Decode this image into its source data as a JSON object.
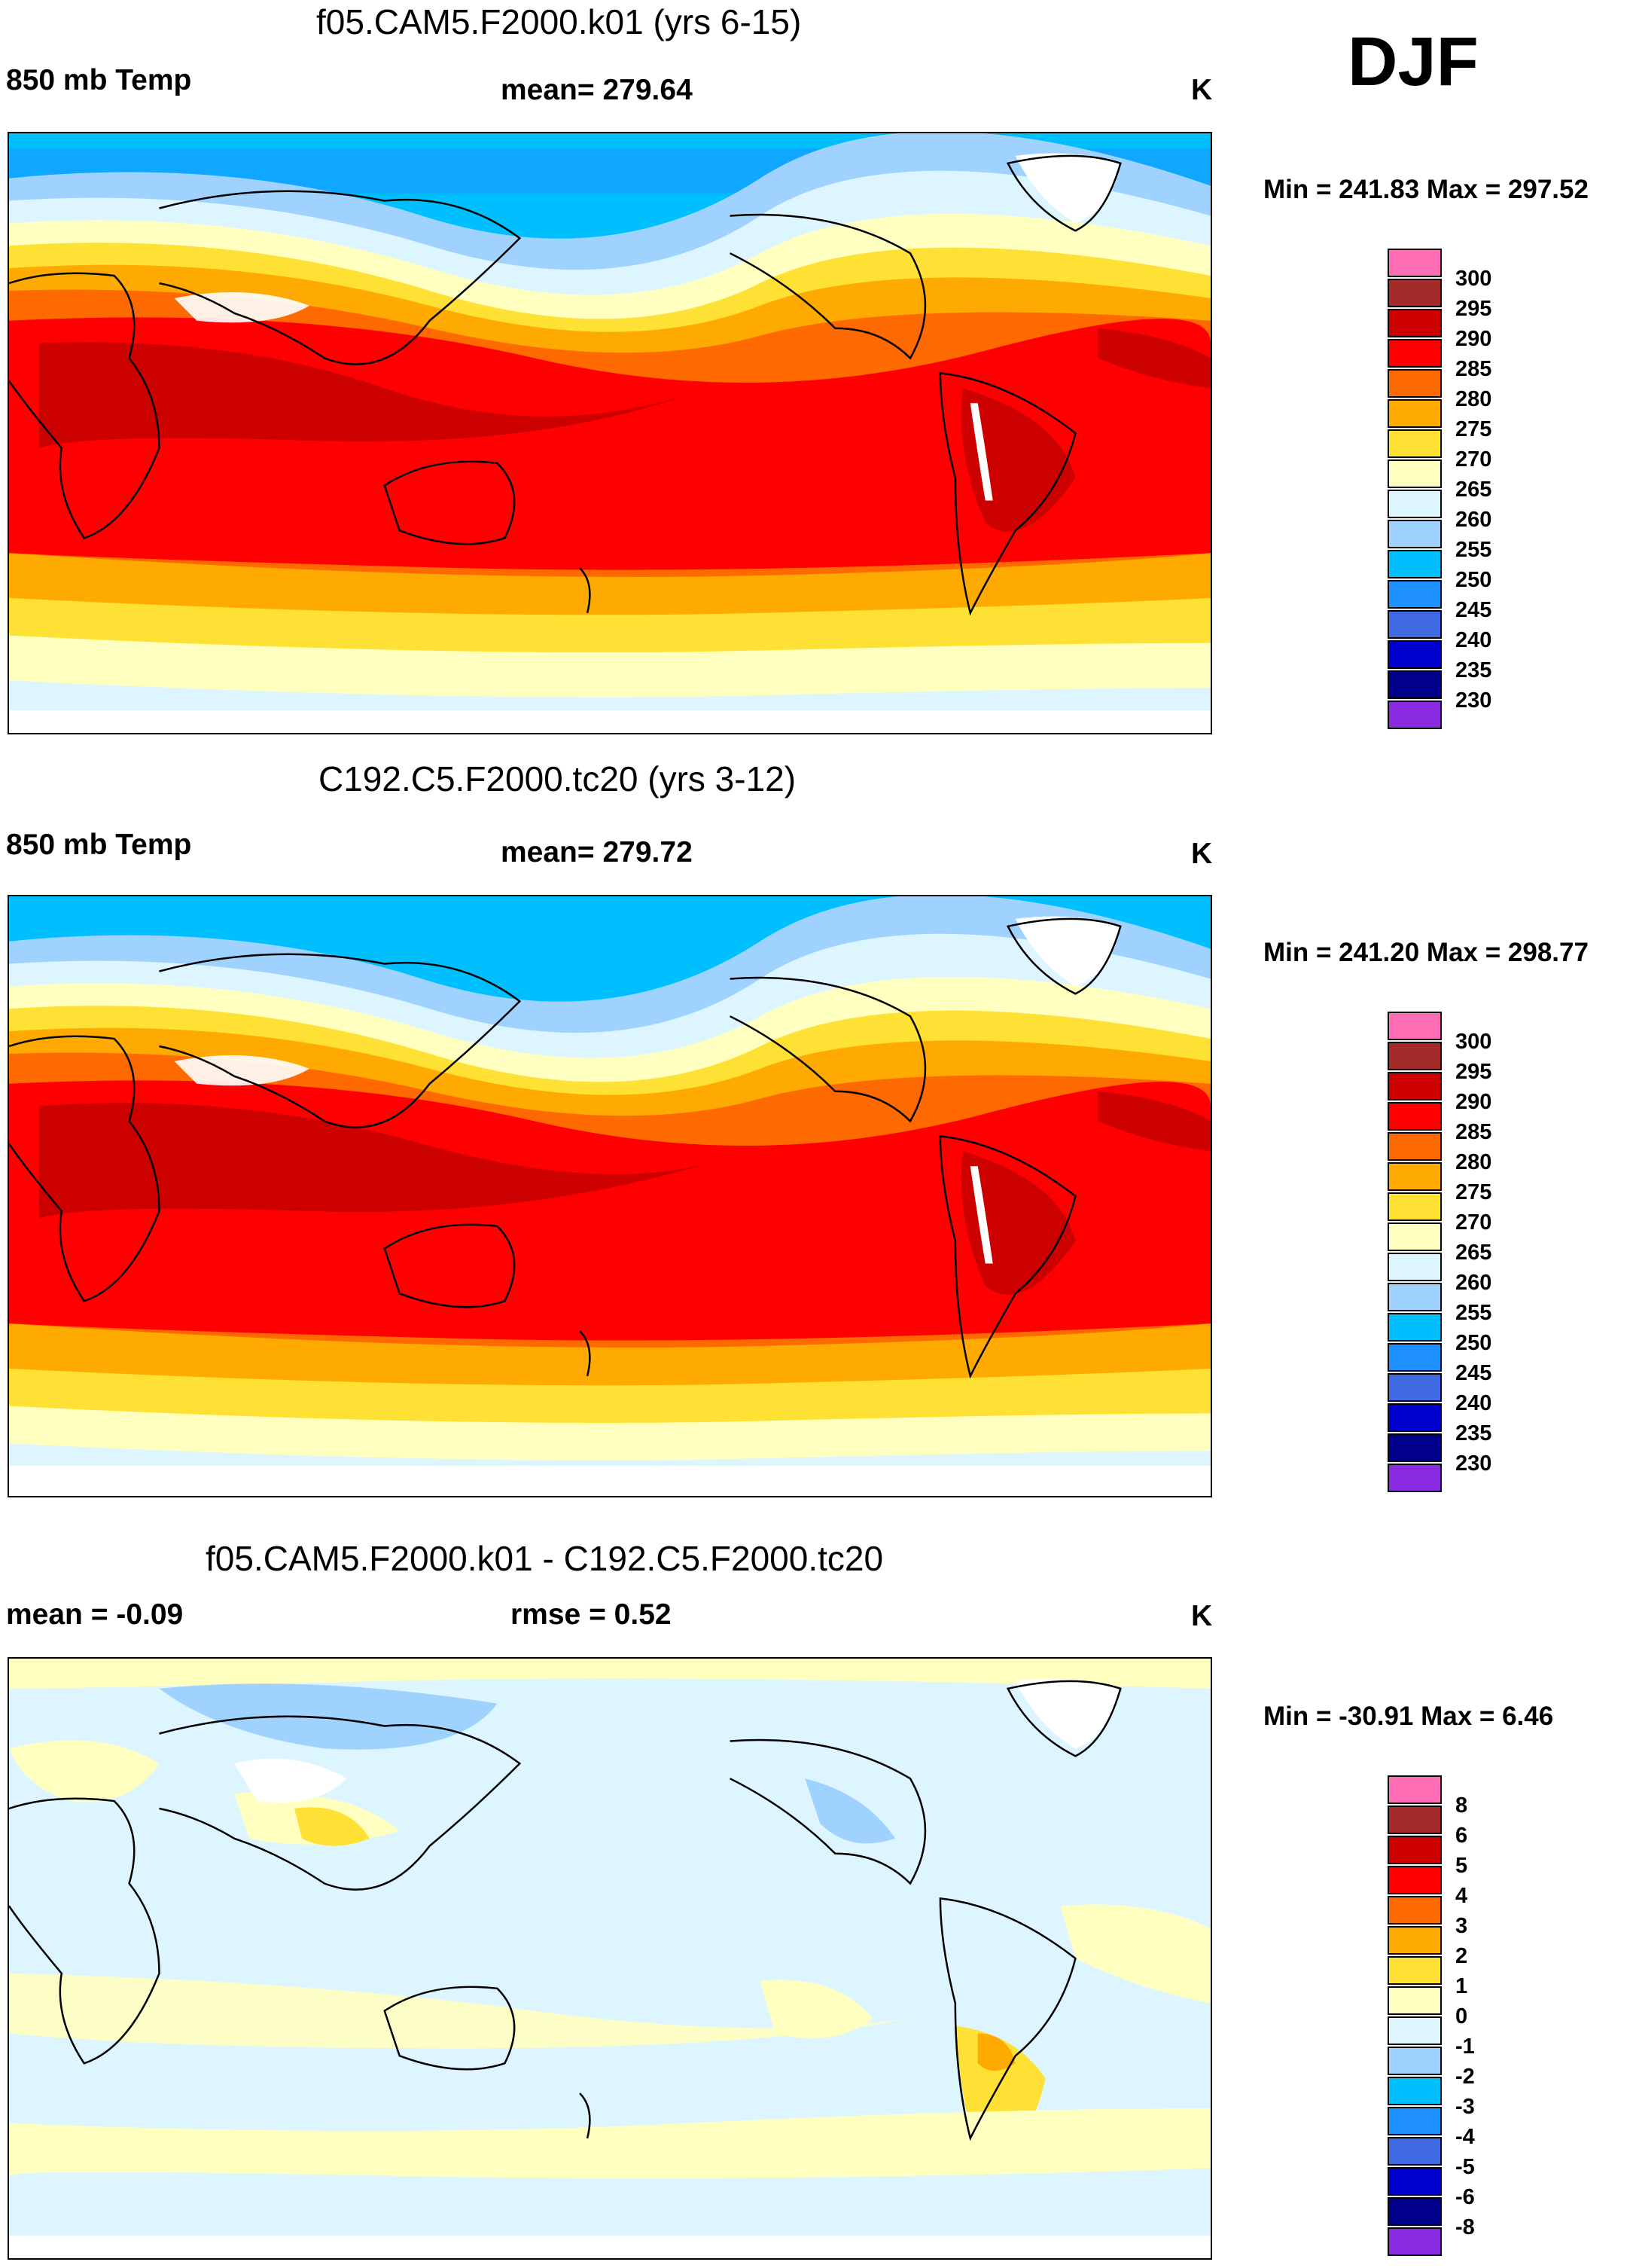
{
  "season": "DJF",
  "panels": [
    {
      "title": "f05.CAM5.F2000.k01 (yrs 6-15)",
      "left": "850 mb Temp",
      "center": "mean= 279.64",
      "units": "K",
      "minmax": "Min = 241.83 Max = 297.52",
      "type": "abs"
    },
    {
      "title": "C192.C5.F2000.tc20 (yrs 3-12)",
      "left": "850 mb Temp",
      "center": "mean= 279.72",
      "units": "K",
      "minmax": "Min = 241.20 Max = 298.77",
      "type": "abs"
    },
    {
      "title": "f05.CAM5.F2000.k01 - C192.C5.F2000.tc20",
      "left": "mean =  -0.09",
      "center": "rmse =   0.52",
      "units": "K",
      "minmax": "Min = -30.91 Max =   6.46",
      "type": "diff"
    }
  ],
  "colorbar_abs": {
    "labels": [
      "300",
      "295",
      "290",
      "285",
      "280",
      "275",
      "270",
      "265",
      "260",
      "255",
      "250",
      "245",
      "240",
      "235",
      "230"
    ],
    "colors": [
      "#ff6eb4",
      "#a52a2a",
      "#cd0000",
      "#ff0000",
      "#ff6a00",
      "#ffaa00",
      "#ffe135",
      "#ffffc0",
      "#dcf5ff",
      "#a0d2ff",
      "#00bfff",
      "#1e90ff",
      "#4169e1",
      "#0000cd",
      "#00008b",
      "#8a2be2"
    ]
  },
  "colorbar_diff": {
    "labels": [
      "8",
      "6",
      "5",
      "4",
      "3",
      "2",
      "1",
      "0",
      "-1",
      "-2",
      "-3",
      "-4",
      "-5",
      "-6",
      "-8"
    ],
    "colors": [
      "#ff6eb4",
      "#a52a2a",
      "#cd0000",
      "#ff0000",
      "#ff6a00",
      "#ffaa00",
      "#ffe135",
      "#ffffc0",
      "#dcf5ff",
      "#a0d2ff",
      "#00bfff",
      "#1e90ff",
      "#4169e1",
      "#0000cd",
      "#00008b",
      "#8a2be2"
    ]
  }
}
